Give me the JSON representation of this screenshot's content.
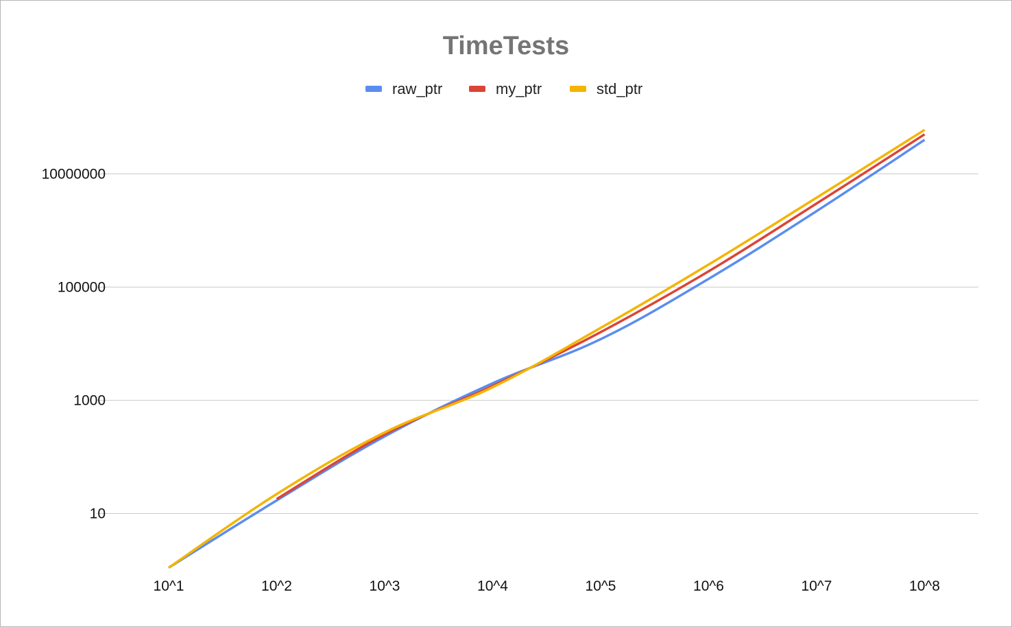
{
  "chart_data": {
    "type": "line",
    "title": "TimeTests",
    "xlabel": "",
    "ylabel": "",
    "y_scale": "log",
    "ylim": [
      1,
      100000000
    ],
    "legend_position": "top",
    "grid": true,
    "x_categories": [
      "10^1",
      "10^2",
      "10^3",
      "10^4",
      "10^5",
      "10^6",
      "10^7",
      "10^8"
    ],
    "y_ticks": [
      "10",
      "1000",
      "100000",
      "10000000"
    ],
    "series": [
      {
        "name": "raw_ptr",
        "color": "#5b8def",
        "x": [
          "10^1",
          "10^2",
          "10^3",
          "10^4",
          "10^5",
          "10^6",
          "10^7",
          "10^8"
        ],
        "values": [
          1.1,
          17,
          230,
          2000,
          12000,
          140000,
          2200000,
          40000000
        ]
      },
      {
        "name": "my_ptr",
        "color": "#db4437",
        "x": [
          "10^2",
          "10^3",
          "10^4",
          "10^5",
          "10^6",
          "10^7",
          "10^8"
        ],
        "values": [
          18,
          250,
          1800,
          16000,
          190000,
          3000000,
          50000000
        ]
      },
      {
        "name": "std_ptr",
        "color": "#f4b400",
        "x": [
          "10^1",
          "10^2",
          "10^3",
          "10^4",
          "10^5",
          "10^6",
          "10^7",
          "10^8"
        ],
        "values": [
          1.1,
          22,
          270,
          1700,
          19000,
          250000,
          3800000,
          60000000
        ]
      }
    ]
  }
}
